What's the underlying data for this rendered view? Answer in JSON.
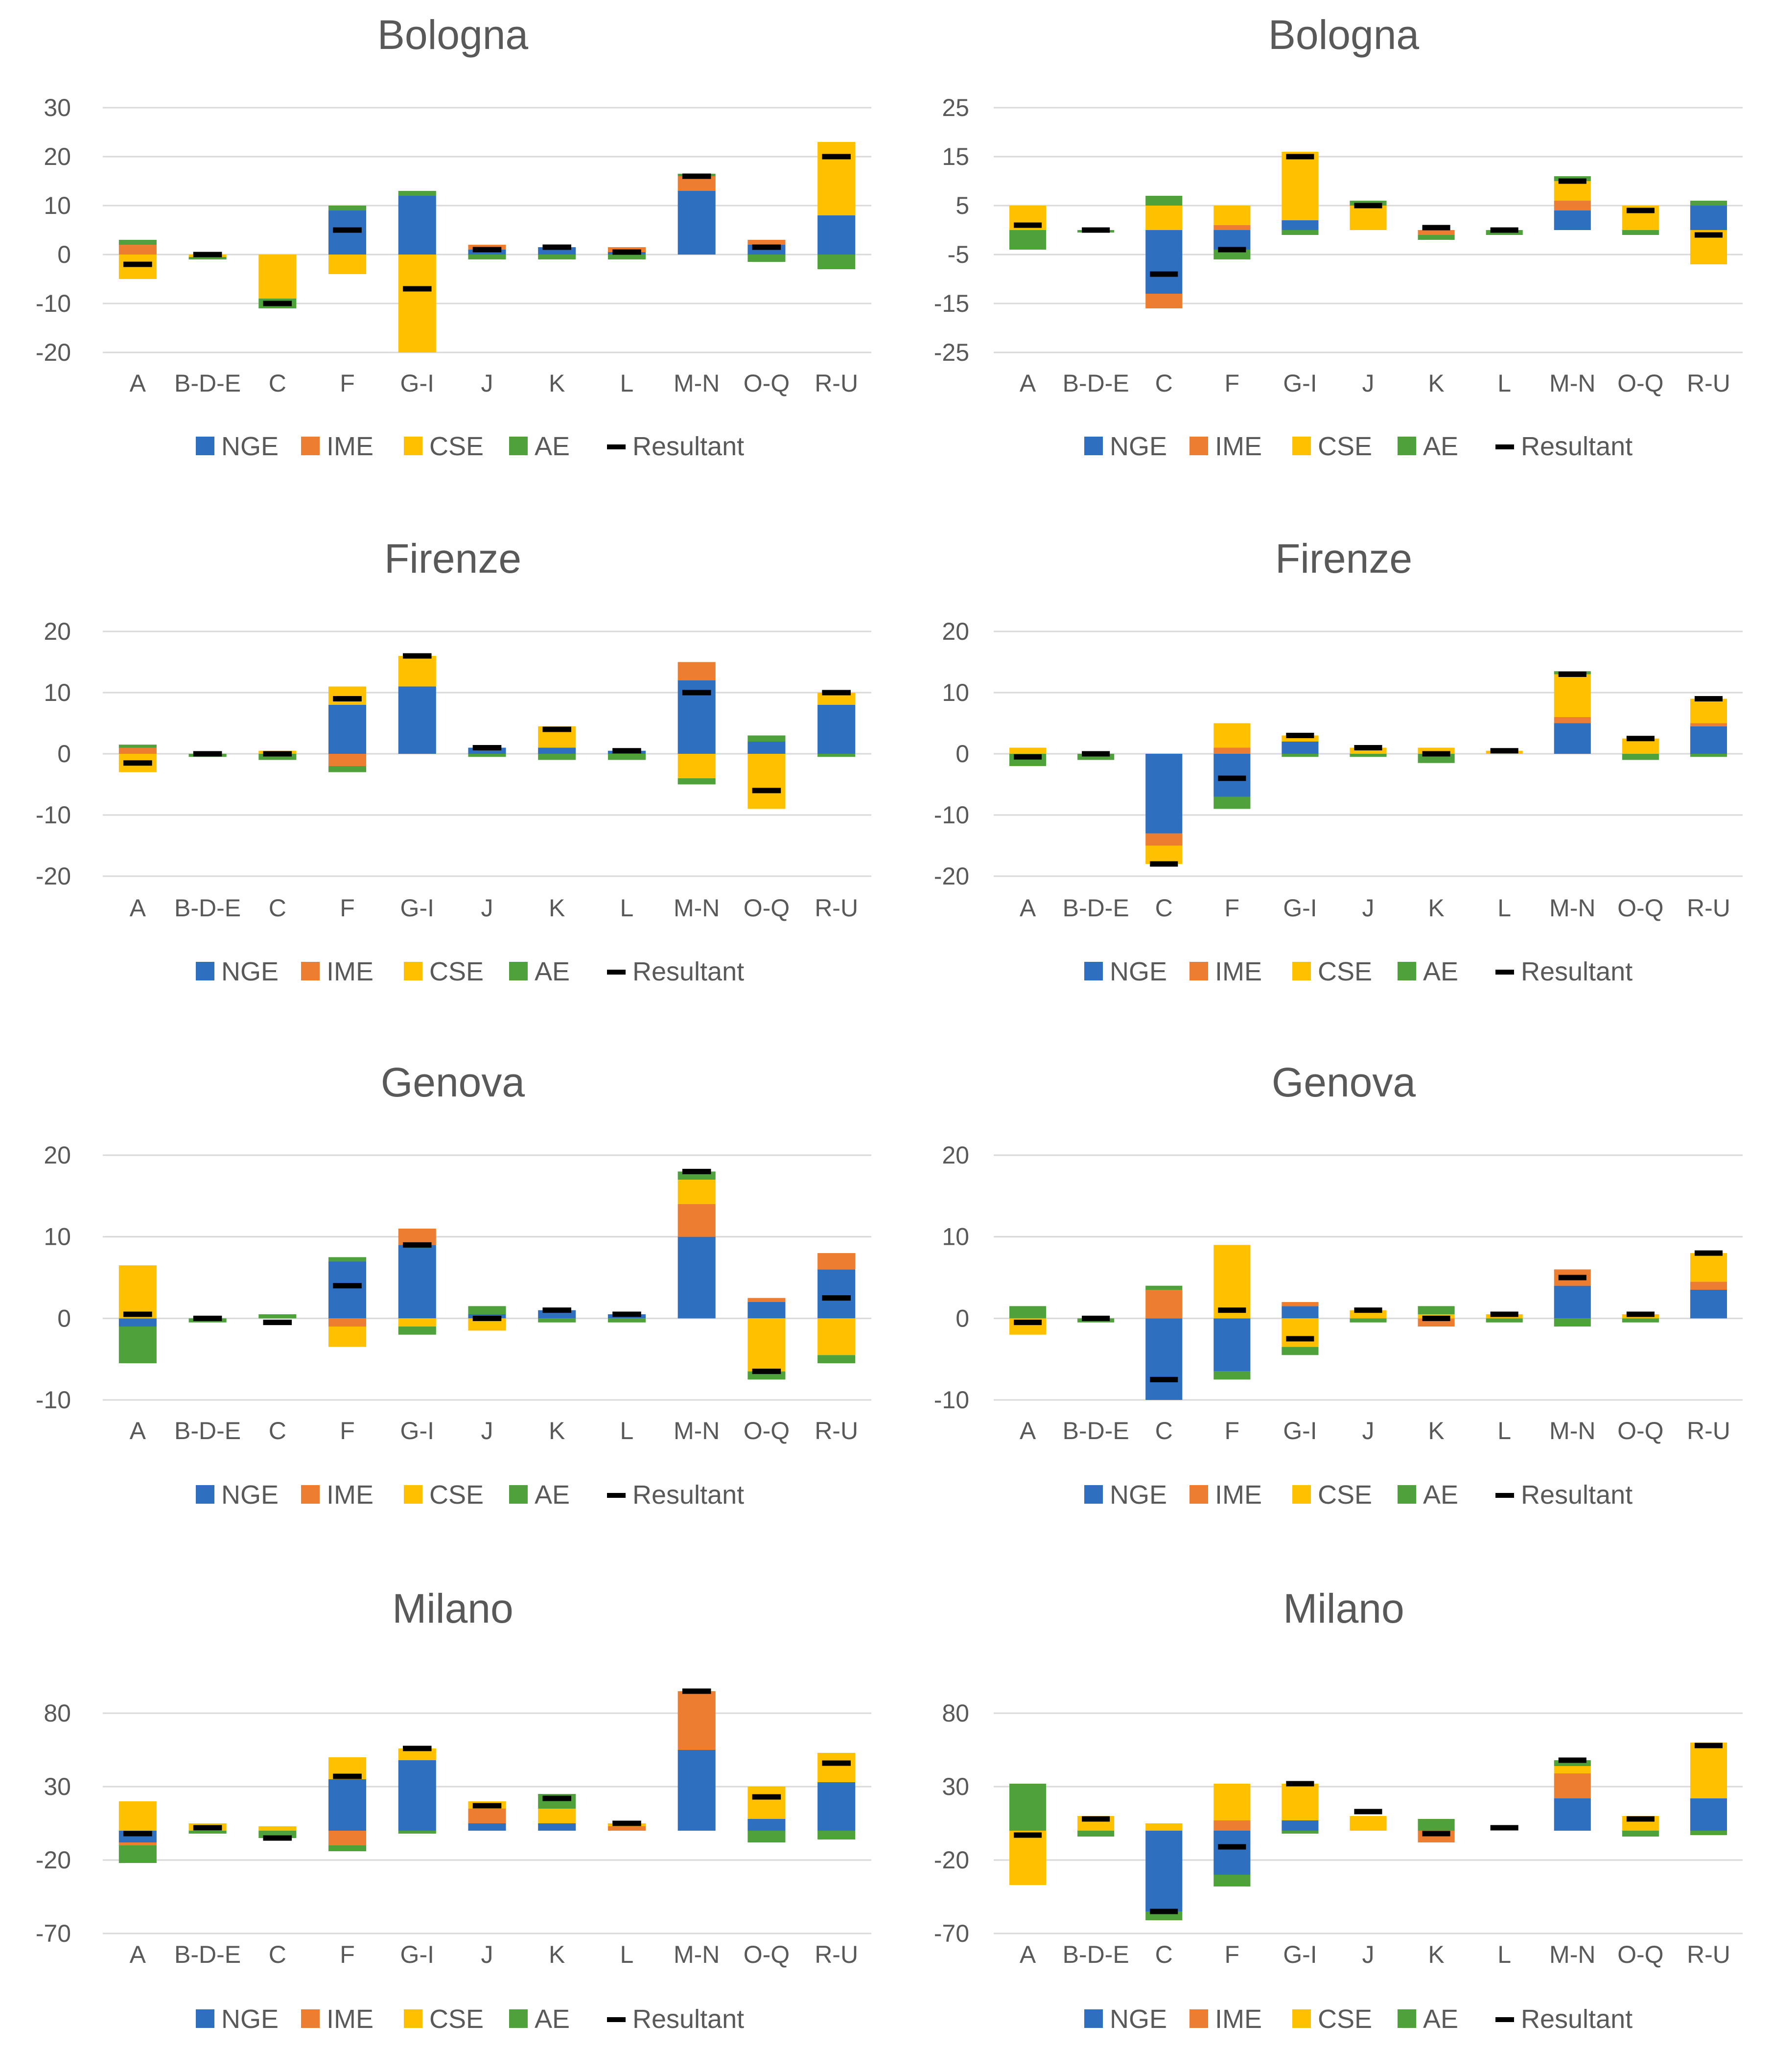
{
  "colors": {
    "NGE": "#2f6fbf",
    "IME": "#ed7d31",
    "CSE": "#ffc000",
    "AE": "#4fa13c",
    "Resultant": "#000000",
    "grid": "#d9d9d9",
    "text": "#595959"
  },
  "legend": [
    "NGE",
    "IME",
    "CSE",
    "AE",
    "Resultant"
  ],
  "chart_data": [
    {
      "type": "bar",
      "stacked": true,
      "title": "Bologna",
      "categories": [
        "A",
        "B-D-E",
        "C",
        "F",
        "G-I",
        "J",
        "K",
        "L",
        "M-N",
        "O-Q",
        "R-U"
      ],
      "ylim": [
        -20,
        30
      ],
      "yticks": [
        -20,
        -10,
        0,
        10,
        20,
        30
      ],
      "grid": true,
      "legend_position": "bottom",
      "series": [
        {
          "name": "NGE",
          "values": [
            0,
            0,
            0,
            9,
            12,
            1,
            1.5,
            0.5,
            13,
            2,
            8
          ]
        },
        {
          "name": "IME",
          "values": [
            2,
            0,
            0,
            0,
            0,
            1,
            0,
            1,
            3,
            1,
            0
          ]
        },
        {
          "name": "CSE",
          "values": [
            -5,
            -0.5,
            -9,
            -4,
            -20,
            0,
            0,
            0,
            0,
            0,
            15
          ]
        },
        {
          "name": "AE",
          "values": [
            1,
            -0.5,
            -2,
            1,
            1,
            -1,
            -1,
            -1,
            0.5,
            -1.5,
            -3
          ]
        }
      ],
      "resultant": [
        -2,
        0,
        -10,
        5,
        -7,
        1,
        1.5,
        0.5,
        16,
        1.5,
        20
      ]
    },
    {
      "type": "bar",
      "stacked": true,
      "title": "Bologna",
      "categories": [
        "A",
        "B-D-E",
        "C",
        "F",
        "G-I",
        "J",
        "K",
        "L",
        "M-N",
        "O-Q",
        "R-U"
      ],
      "ylim": [
        -25,
        25
      ],
      "yticks": [
        -25,
        -15,
        -5,
        5,
        15,
        25
      ],
      "grid": true,
      "legend_position": "bottom",
      "series": [
        {
          "name": "NGE",
          "values": [
            0,
            0,
            -13,
            -4,
            2,
            0,
            0,
            0,
            4,
            0,
            5
          ]
        },
        {
          "name": "IME",
          "values": [
            0,
            0,
            -3,
            1,
            0,
            0,
            -1,
            0,
            2,
            0,
            0
          ]
        },
        {
          "name": "CSE",
          "values": [
            5,
            0,
            5,
            4,
            14,
            5,
            0,
            0,
            4,
            5,
            -7
          ]
        },
        {
          "name": "AE",
          "values": [
            -4,
            -0.5,
            2,
            -2,
            -1,
            1,
            -1,
            -1,
            1,
            -1,
            1
          ]
        }
      ],
      "resultant": [
        1,
        0,
        -9,
        -4,
        15,
        5,
        0.5,
        0,
        10,
        4,
        -1
      ]
    },
    {
      "type": "bar",
      "stacked": true,
      "title": "Firenze",
      "categories": [
        "A",
        "B-D-E",
        "C",
        "F",
        "G-I",
        "J",
        "K",
        "L",
        "M-N",
        "O-Q",
        "R-U"
      ],
      "ylim": [
        -20,
        20
      ],
      "yticks": [
        -20,
        -10,
        0,
        10,
        20
      ],
      "grid": true,
      "legend_position": "bottom",
      "series": [
        {
          "name": "NGE",
          "values": [
            0,
            0,
            0,
            8,
            11,
            1,
            1,
            0.5,
            12,
            2,
            8
          ]
        },
        {
          "name": "IME",
          "values": [
            1,
            0,
            0,
            -2,
            0,
            0,
            0,
            0,
            3,
            0,
            0
          ]
        },
        {
          "name": "CSE",
          "values": [
            -3,
            0,
            0.5,
            3,
            5,
            0,
            3.5,
            0,
            -4,
            -9,
            2
          ]
        },
        {
          "name": "AE",
          "values": [
            0.5,
            -0.5,
            -1,
            -1,
            0,
            -0.5,
            -1,
            -1,
            -1,
            1,
            -0.5
          ]
        }
      ],
      "resultant": [
        -1.5,
        0,
        0,
        9,
        16,
        1,
        4,
        0.5,
        10,
        -6,
        10
      ]
    },
    {
      "type": "bar",
      "stacked": true,
      "title": "Firenze",
      "categories": [
        "A",
        "B-D-E",
        "C",
        "F",
        "G-I",
        "J",
        "K",
        "L",
        "M-N",
        "O-Q",
        "R-U"
      ],
      "ylim": [
        -20,
        20
      ],
      "yticks": [
        -20,
        -10,
        0,
        10,
        20
      ],
      "grid": true,
      "legend_position": "bottom",
      "series": [
        {
          "name": "NGE",
          "values": [
            0,
            0,
            -13,
            -7,
            2,
            0,
            0,
            0,
            5,
            0,
            4.5
          ]
        },
        {
          "name": "IME",
          "values": [
            0,
            0,
            -2,
            1,
            0,
            0,
            0,
            0,
            1,
            0,
            0.5
          ]
        },
        {
          "name": "CSE",
          "values": [
            1,
            0,
            -3,
            4,
            1,
            1,
            1,
            0.5,
            7,
            2.5,
            4
          ]
        },
        {
          "name": "AE",
          "values": [
            -2,
            -1,
            0,
            -2,
            -0.5,
            -0.5,
            -1.5,
            0,
            0.5,
            -1,
            -0.5
          ]
        }
      ],
      "resultant": [
        -0.5,
        0,
        -18,
        -4,
        3,
        1,
        0,
        0.5,
        13,
        2.5,
        9
      ]
    },
    {
      "type": "bar",
      "stacked": true,
      "title": "Genova",
      "categories": [
        "A",
        "B-D-E",
        "C",
        "F",
        "G-I",
        "J",
        "K",
        "L",
        "M-N",
        "O-Q",
        "R-U"
      ],
      "ylim": [
        -10,
        20
      ],
      "yticks": [
        -10,
        0,
        10,
        20
      ],
      "grid": true,
      "legend_position": "bottom",
      "series": [
        {
          "name": "NGE",
          "values": [
            -1,
            0,
            0,
            7,
            9,
            0.5,
            1,
            0.5,
            10,
            2,
            6
          ]
        },
        {
          "name": "IME",
          "values": [
            0,
            0,
            0,
            -1,
            2,
            0,
            0,
            0,
            4,
            0.5,
            2
          ]
        },
        {
          "name": "CSE",
          "values": [
            6.5,
            0,
            0,
            -2.5,
            -1,
            -1.5,
            0,
            0,
            3,
            -6.5,
            -4.5
          ]
        },
        {
          "name": "AE",
          "values": [
            -4.5,
            -0.5,
            0.5,
            0.5,
            -1,
            1,
            -0.5,
            -0.5,
            1,
            -1,
            -1
          ]
        }
      ],
      "resultant": [
        0.5,
        0,
        -0.5,
        4,
        9,
        0,
        1,
        0.5,
        18,
        -6.5,
        2.5
      ]
    },
    {
      "type": "bar",
      "stacked": true,
      "title": "Genova",
      "categories": [
        "A",
        "B-D-E",
        "C",
        "F",
        "G-I",
        "J",
        "K",
        "L",
        "M-N",
        "O-Q",
        "R-U"
      ],
      "ylim": [
        -10,
        20
      ],
      "yticks": [
        -10,
        0,
        10,
        20
      ],
      "grid": true,
      "legend_position": "bottom",
      "series": [
        {
          "name": "NGE",
          "values": [
            0,
            0,
            -10,
            -6.5,
            1.5,
            0,
            0,
            0,
            4,
            0,
            3.5
          ]
        },
        {
          "name": "IME",
          "values": [
            0,
            0,
            3.5,
            0,
            0.5,
            0,
            -1,
            0,
            2,
            0,
            1
          ]
        },
        {
          "name": "CSE",
          "values": [
            -2,
            0,
            0,
            9,
            -3.5,
            1,
            0.5,
            0.5,
            0,
            0.5,
            3.5
          ]
        },
        {
          "name": "AE",
          "values": [
            1.5,
            -0.5,
            0.5,
            -1,
            -1,
            -0.5,
            1,
            -0.5,
            -1,
            -0.5,
            0
          ]
        }
      ],
      "resultant": [
        -0.5,
        0,
        -7.5,
        1,
        -2.5,
        1,
        0,
        0.5,
        5,
        0.5,
        8
      ]
    },
    {
      "type": "bar",
      "stacked": true,
      "title": "Milano",
      "categories": [
        "A",
        "B-D-E",
        "C",
        "F",
        "G-I",
        "J",
        "K",
        "L",
        "M-N",
        "O-Q",
        "R-U"
      ],
      "ylim": [
        -70,
        80
      ],
      "yticks": [
        -70,
        -20,
        30,
        80
      ],
      "grid": true,
      "legend_position": "bottom",
      "series": [
        {
          "name": "NGE",
          "values": [
            -8,
            0,
            0,
            35,
            48,
            5,
            5,
            0,
            55,
            8,
            33
          ]
        },
        {
          "name": "IME",
          "values": [
            -2,
            0,
            0,
            -10,
            0,
            10,
            0,
            3,
            40,
            0,
            0
          ]
        },
        {
          "name": "CSE",
          "values": [
            20,
            5,
            3,
            15,
            8,
            5,
            10,
            2,
            0,
            22,
            20
          ]
        },
        {
          "name": "AE",
          "values": [
            -12,
            -2,
            -5,
            -4,
            -2,
            0,
            10,
            0,
            0,
            -8,
            -6
          ]
        }
      ],
      "resultant": [
        -2,
        2,
        -5,
        37,
        56,
        17,
        22,
        5,
        95,
        23,
        46
      ]
    },
    {
      "type": "bar",
      "stacked": true,
      "title": "Milano",
      "categories": [
        "A",
        "B-D-E",
        "C",
        "F",
        "G-I",
        "J",
        "K",
        "L",
        "M-N",
        "O-Q",
        "R-U"
      ],
      "ylim": [
        -70,
        80
      ],
      "yticks": [
        -70,
        -20,
        30,
        80
      ],
      "grid": true,
      "legend_position": "bottom",
      "series": [
        {
          "name": "NGE",
          "values": [
            0,
            0,
            -55,
            -30,
            7,
            0,
            0,
            0,
            22,
            0,
            22
          ]
        },
        {
          "name": "IME",
          "values": [
            0,
            0,
            0,
            7,
            0,
            0,
            -8,
            0,
            17,
            0,
            0
          ]
        },
        {
          "name": "CSE",
          "values": [
            -37,
            10,
            5,
            25,
            25,
            10,
            0,
            0,
            5,
            10,
            38
          ]
        },
        {
          "name": "AE",
          "values": [
            32,
            -4,
            -6,
            -8,
            -2,
            0,
            8,
            0,
            4,
            -4,
            -3
          ]
        }
      ],
      "resultant": [
        -3,
        8,
        -55,
        -11,
        32,
        13,
        -2,
        2,
        48,
        8,
        58
      ]
    }
  ]
}
